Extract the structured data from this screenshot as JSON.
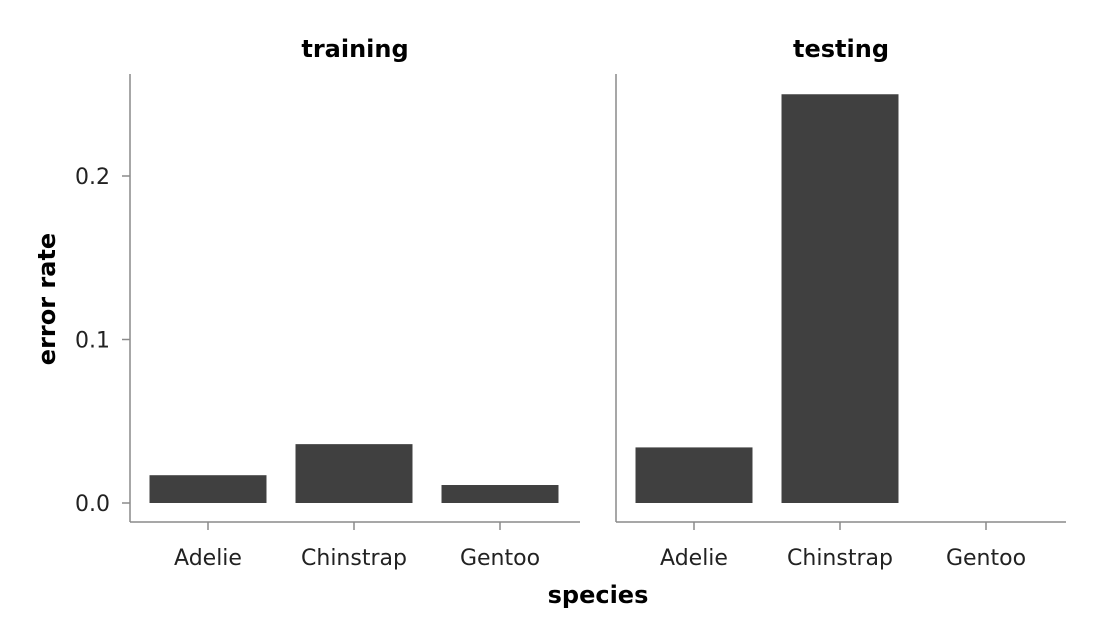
{
  "chart_data": {
    "type": "bar",
    "xlabel": "species",
    "ylabel": "error rate",
    "ylim": [
      0,
      0.25
    ],
    "yticks": [
      0.0,
      0.1,
      0.2
    ],
    "ytick_labels": [
      "0.0",
      "0.1",
      "0.2"
    ],
    "categories": [
      "Adelie",
      "Chinstrap",
      "Gentoo"
    ],
    "bar_color": "#404040",
    "facets": [
      {
        "title": "training",
        "values": [
          0.017,
          0.036,
          0.011
        ]
      },
      {
        "title": "testing",
        "values": [
          0.034,
          0.25,
          0.0
        ]
      }
    ]
  }
}
